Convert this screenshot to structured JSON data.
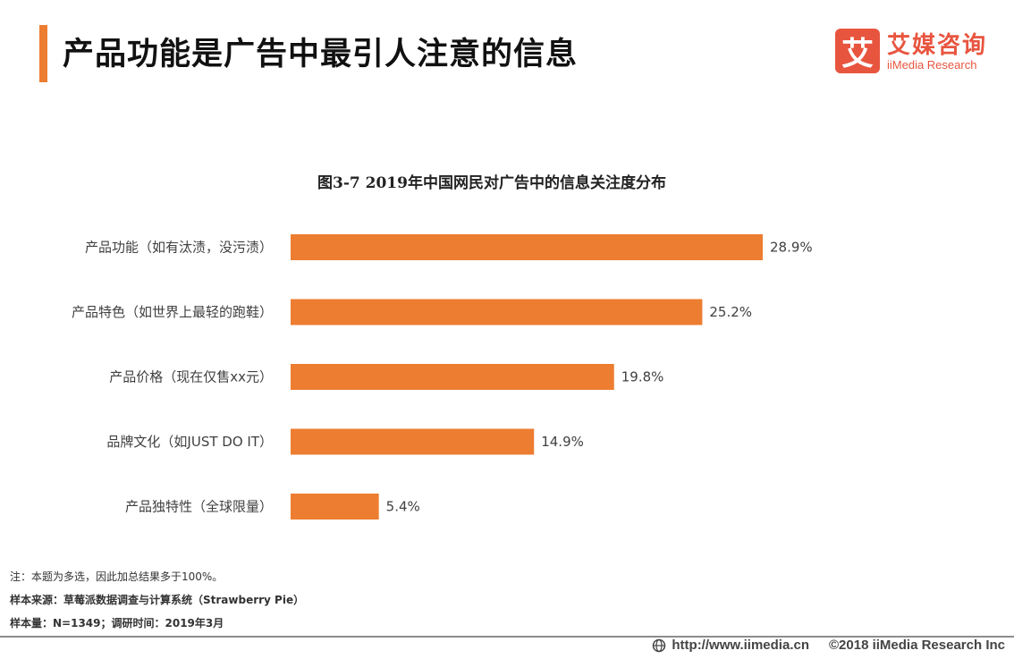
{
  "page_title": "产品功能是广告中最引人注意的信息",
  "logo": {
    "mark_char": "艾",
    "name_cn": "艾媒咨询",
    "name_en": "iiMedia Research",
    "brand_color": "#e8553f"
  },
  "chart_data": {
    "type": "bar",
    "orientation": "horizontal",
    "title": "图3-7 2019年中国网民对广告中的信息关注度分布",
    "categories": [
      "产品功能（如有汰渍，没污渍）",
      "产品特色（如世界上最轻的跑鞋）",
      "产品价格（现在仅售xx元）",
      "品牌文化（如JUST DO IT）",
      "产品独特性（全球限量）"
    ],
    "values": [
      28.9,
      25.2,
      19.8,
      14.9,
      5.4
    ],
    "value_labels": [
      "28.9%",
      "25.2%",
      "19.8%",
      "14.9%",
      "5.4%"
    ],
    "unit": "%",
    "xlim": [
      0,
      28.9
    ],
    "bar_color": "#ed7d31",
    "grid": false,
    "legend": "none"
  },
  "notes": {
    "note": "注：本题为多选，因此加总结果多于100%。",
    "source": "样本来源：草莓派数据调查与计算系统（Strawberry Pie）",
    "sample": "样本量：N=1349；调研时间：2019年3月"
  },
  "footer": {
    "icon": "globe-icon",
    "url": "http://www.iimedia.cn",
    "copyright": "©2018  iiMedia Research  Inc"
  },
  "colors": {
    "accent": "#ed7d31",
    "brand": "#e8553f"
  }
}
